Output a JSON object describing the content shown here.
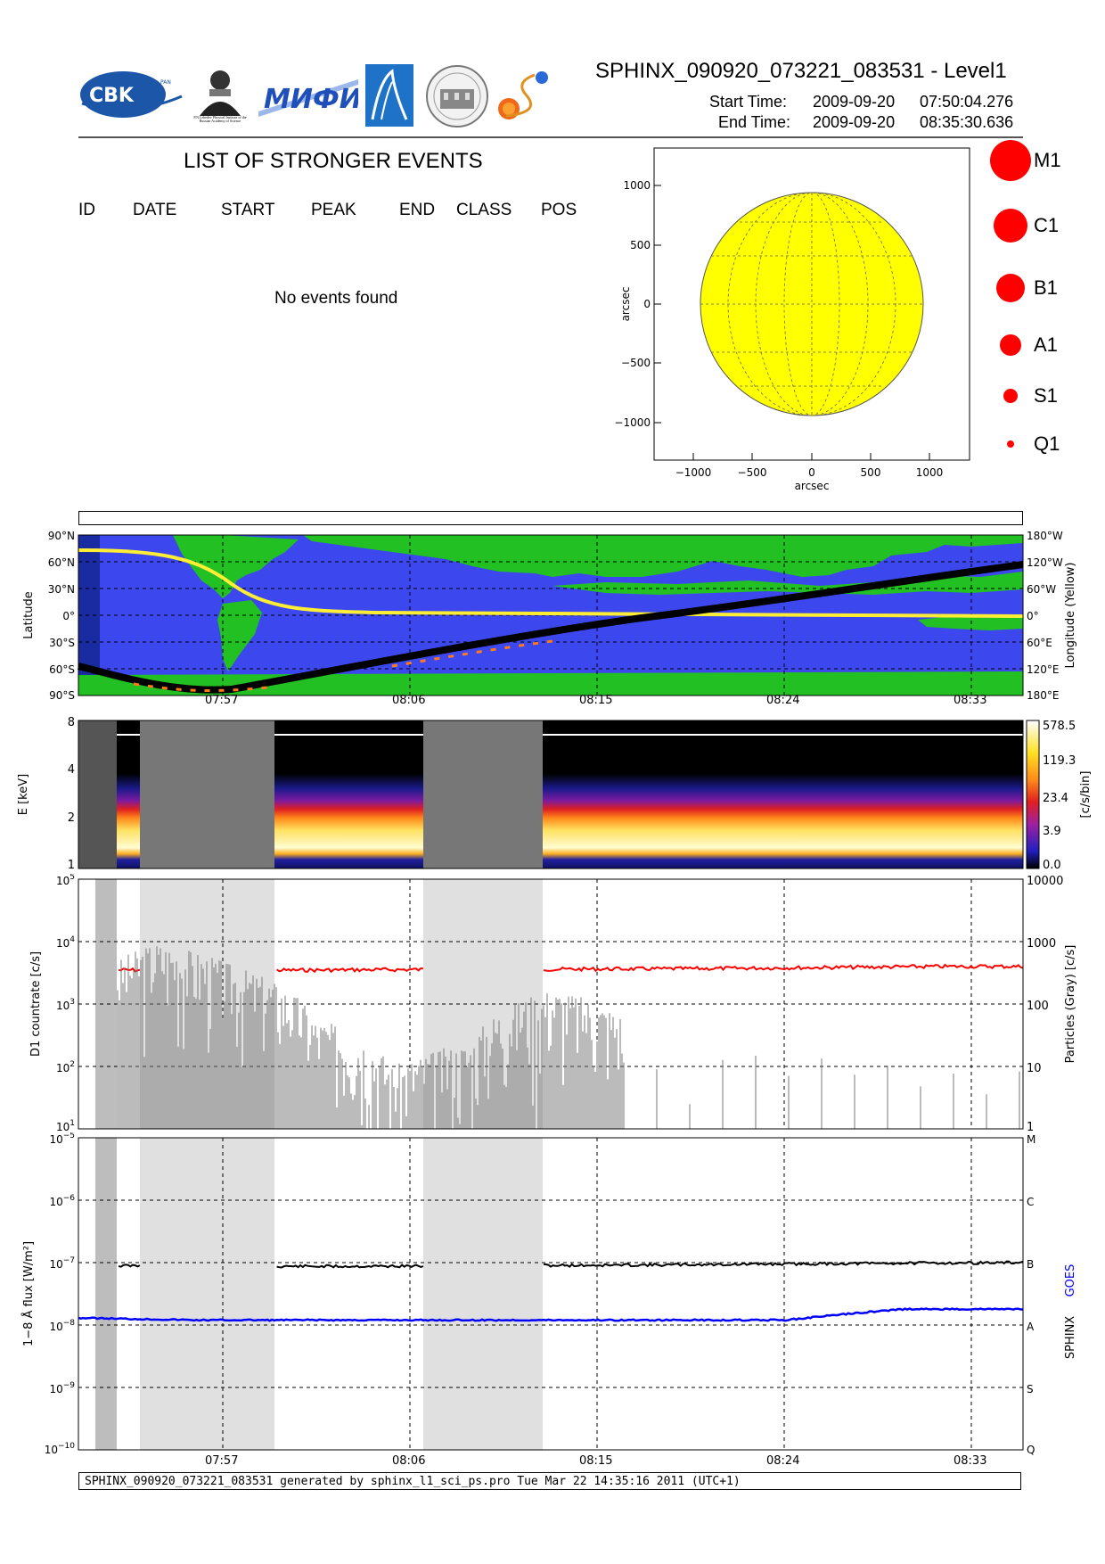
{
  "header": {
    "title": "SPHINX_090920_073221_083531 - Level1",
    "start_label": "Start Time:",
    "start_date": "2009-09-20",
    "start_time": "07:50:04.276",
    "end_label": "End Time:",
    "end_date": "2009-09-20",
    "end_time": "08:35:30.636"
  },
  "logos": {
    "cbk": "CBK",
    "cbk_sub": "PAN",
    "lebedev": "P.N.Lebedev Physical Institute of the Russian Academy of Science",
    "mifi": "МИФИ",
    "colors": {
      "cbk": "#1c56a8",
      "mifi": "#1f4fb8",
      "spacecraft": "#1e73c8"
    }
  },
  "events": {
    "title": "LIST OF STRONGER EVENTS",
    "columns": [
      "ID",
      "DATE",
      "START",
      "PEAK",
      "END",
      "CLASS",
      "POS"
    ],
    "empty_text": "No events found"
  },
  "sun_map": {
    "xlabel": "arcsec",
    "ylabel": "arcsec",
    "x_ticks": [
      "−1000",
      "−500",
      "0",
      "500",
      "1000"
    ],
    "y_ticks": [
      "1000",
      "500",
      "0",
      "−500",
      "−1000"
    ],
    "disk_color": "#ffff00"
  },
  "class_legend": {
    "items": [
      {
        "label": "M1",
        "size": 46
      },
      {
        "label": "C1",
        "size": 38
      },
      {
        "label": "B1",
        "size": 32
      },
      {
        "label": "A1",
        "size": 24
      },
      {
        "label": "S1",
        "size": 16
      },
      {
        "label": "Q1",
        "size": 8
      }
    ],
    "color": "#ff0000"
  },
  "time_axis": {
    "labels": [
      "07:57",
      "08:06",
      "08:15",
      "08:24",
      "08:33"
    ]
  },
  "chart_data": [
    {
      "type": "heatmap",
      "name": "orbit_map",
      "ylabel": "Latitude",
      "y2label": "Longitude (Yellow)",
      "lat_ticks": [
        "90°N",
        "60°N",
        "30°N",
        "0°",
        "30°S",
        "60°S",
        "90°S"
      ],
      "lon_ticks": [
        "180°W",
        "120°W",
        "60°W",
        "0°",
        "60°E",
        "120°E",
        "180°E"
      ],
      "colors": {
        "ocean": "#3c48ee",
        "land": "#22c022",
        "night": "#1a2aa0",
        "longitude": "#ffee33",
        "track": "#000000"
      }
    },
    {
      "type": "heatmap",
      "name": "spectrogram",
      "ylabel": "E [keV]",
      "y_ticks": [
        "8",
        "4",
        "2",
        "1"
      ],
      "colorbar_label": "[c/s/bin]",
      "colorbar_ticks": [
        "578.5",
        "119.3",
        "23.4",
        "3.9",
        "0.0"
      ]
    },
    {
      "type": "line",
      "name": "countrate",
      "ylabel": "D1 countrate [c/s]",
      "y2label": "Particles (Gray) [c/s]",
      "y_ticks": [
        "10^5",
        "10^4",
        "10^3",
        "10^2",
        "10^1"
      ],
      "y2_ticks": [
        "10000",
        "1000",
        "100",
        "10",
        "1"
      ],
      "ylim": [
        10,
        100000
      ],
      "series": [
        {
          "name": "D1 countrate",
          "color": "#ff0000",
          "values": [
            3500,
            3500,
            3450,
            3500,
            3550,
            3600,
            3600,
            3650,
            3700,
            3800,
            3900,
            4000,
            4000
          ]
        },
        {
          "name": "Particles",
          "color": "#777777",
          "values": [
            10,
            1000,
            400,
            60,
            10,
            25,
            180,
            60,
            10,
            10,
            15,
            12,
            20
          ]
        }
      ]
    },
    {
      "type": "line",
      "name": "flux",
      "ylabel": "1−8 Å flux [W/m²]",
      "y_ticks": [
        "10^-5",
        "10^-6",
        "10^-7",
        "10^-8",
        "10^-9",
        "10^-10"
      ],
      "class_ticks": [
        "M",
        "C",
        "B",
        "A",
        "S",
        "Q"
      ],
      "legend": [
        "SPHINX",
        "GOES"
      ],
      "ylim": [
        1e-10,
        1e-05
      ],
      "series": [
        {
          "name": "SPHINX",
          "color": "#000000",
          "values": [
            9e-08,
            8.8e-08,
            8.7e-08,
            8.8e-08,
            9e-08,
            9.2e-08,
            9.5e-08,
            9.8e-08,
            1e-07
          ]
        },
        {
          "name": "GOES",
          "color": "#0000ff",
          "values": [
            1.3e-08,
            1.2e-08,
            1.2e-08,
            1.2e-08,
            1.2e-08,
            1.2e-08,
            1.2e-08,
            1.8e-08,
            1.8e-08
          ]
        }
      ]
    }
  ],
  "footer": {
    "text": "SPHINX_090920_073221_083531 generated by sphinx_l1_sci_ps.pro Tue Mar 22 14:35:16 2011 (UTC+1)"
  }
}
